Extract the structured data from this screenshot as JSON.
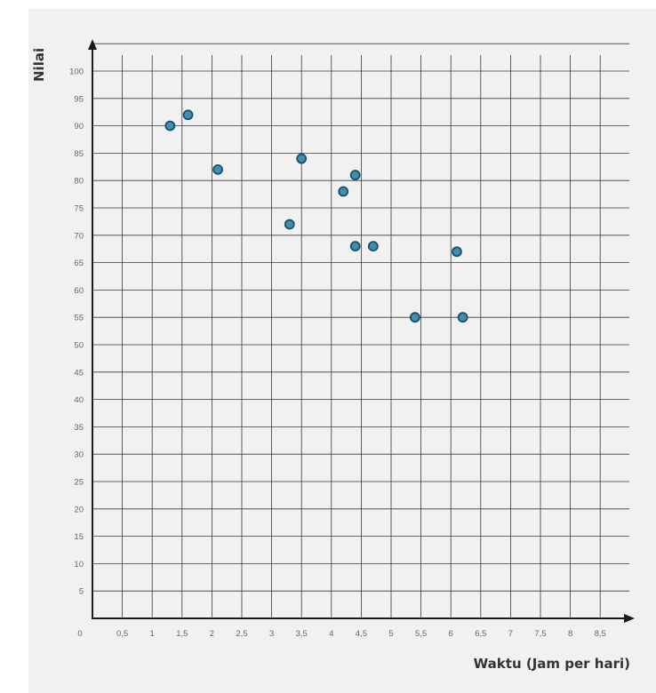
{
  "chart_data": {
    "type": "scatter",
    "title": "",
    "xlabel": "Waktu (Jam per hari)",
    "ylabel": "Nilai",
    "xlim": [
      0,
      9
    ],
    "ylim": [
      0,
      100
    ],
    "x_ticks": [
      "0",
      "0,5",
      "1",
      "1,5",
      "2",
      "2,5",
      "3",
      "3,5",
      "4",
      "4,5",
      "5",
      "5,5",
      "6",
      "6,5",
      "7",
      "7,5",
      "8",
      "8,5"
    ],
    "y_ticks": [
      "5",
      "10",
      "15",
      "20",
      "25",
      "30",
      "35",
      "40",
      "45",
      "50",
      "55",
      "60",
      "65",
      "70",
      "75",
      "80",
      "85",
      "90",
      "95",
      "100"
    ],
    "grid": true,
    "legend": "none",
    "point_color": "#3e8fb0",
    "point_edge_color": "#1f4d66",
    "points": [
      {
        "x": 1.3,
        "y": 90
      },
      {
        "x": 1.6,
        "y": 92
      },
      {
        "x": 2.1,
        "y": 82
      },
      {
        "x": 3.3,
        "y": 72
      },
      {
        "x": 3.5,
        "y": 84
      },
      {
        "x": 4.2,
        "y": 78
      },
      {
        "x": 4.4,
        "y": 81
      },
      {
        "x": 4.4,
        "y": 68
      },
      {
        "x": 4.7,
        "y": 68
      },
      {
        "x": 5.4,
        "y": 55
      },
      {
        "x": 6.1,
        "y": 67
      },
      {
        "x": 6.2,
        "y": 55
      }
    ]
  }
}
